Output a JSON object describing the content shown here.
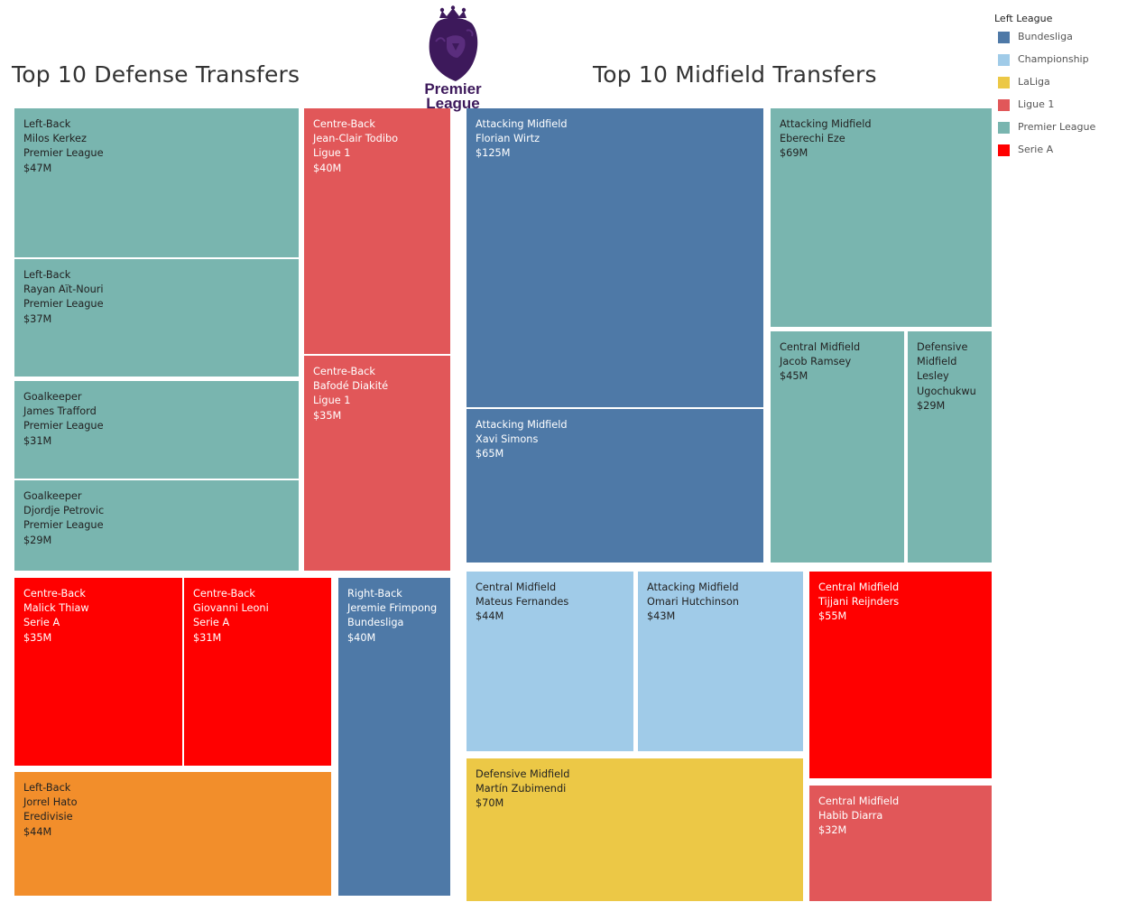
{
  "titles": {
    "defense": "Top 10 Defense Transfers",
    "midfield": "Top 10 Midfield Transfers"
  },
  "logo": {
    "line1": "Premier",
    "line2": "League"
  },
  "legend": {
    "title": "Left League",
    "items": [
      {
        "label": "Bundesliga",
        "color": "#4e79a7"
      },
      {
        "label": "Championship",
        "color": "#a0cbe8"
      },
      {
        "label": "LaLiga",
        "color": "#ecc846"
      },
      {
        "label": "Ligue 1",
        "color": "#e15759"
      },
      {
        "label": "Premier League",
        "color": "#79b5af"
      },
      {
        "label": "Serie A",
        "color": "#ff0000"
      }
    ]
  },
  "chart_data": [
    {
      "type": "treemap",
      "title": "Top 10 Defense Transfers",
      "unit": "$M",
      "items": [
        {
          "position": "Left-Back",
          "player": "Milos Kerkez",
          "league": "Premier League",
          "value_label": "$47M",
          "value": 47
        },
        {
          "position": "Left-Back",
          "player": "Rayan Aït-Nouri",
          "league": "Premier League",
          "value_label": "$37M",
          "value": 37
        },
        {
          "position": "Goalkeeper",
          "player": "James Trafford",
          "league": "Premier League",
          "value_label": "$31M",
          "value": 31
        },
        {
          "position": "Goalkeeper",
          "player": "Djordje Petrovic",
          "league": "Premier League",
          "value_label": "$29M",
          "value": 29
        },
        {
          "position": "Centre-Back",
          "player": "Jean-Clair Todibo",
          "league": "Ligue 1",
          "value_label": "$40M",
          "value": 40
        },
        {
          "position": "Centre-Back",
          "player": "Bafodé Diakité",
          "league": "Ligue 1",
          "value_label": "$35M",
          "value": 35
        },
        {
          "position": "Centre-Back",
          "player": "Malick Thiaw",
          "league": "Serie A",
          "value_label": "$35M",
          "value": 35
        },
        {
          "position": "Centre-Back",
          "player": "Giovanni Leoni",
          "league": "Serie A",
          "value_label": "$31M",
          "value": 31
        },
        {
          "position": "Right-Back",
          "player": "Jeremie Frimpong",
          "league": "Bundesliga",
          "value_label": "$40M",
          "value": 40
        },
        {
          "position": "Left-Back",
          "player": "Jorrel Hato",
          "league": "Eredivisie",
          "value_label": "$44M",
          "value": 44
        }
      ]
    },
    {
      "type": "treemap",
      "title": "Top 10 Midfield Transfers",
      "unit": "$M",
      "items": [
        {
          "position": "Attacking Midfield",
          "player": "Florian Wirtz",
          "league": "Bundesliga",
          "value_label": "$125M",
          "value": 125
        },
        {
          "position": "Attacking Midfield",
          "player": "Xavi Simons",
          "league": "Bundesliga",
          "value_label": "$65M",
          "value": 65
        },
        {
          "position": "Attacking Midfield",
          "player": "Eberechi Eze",
          "league": "Premier League",
          "value_label": "$69M",
          "value": 69
        },
        {
          "position": "Central Midfield",
          "player": "Jacob Ramsey",
          "league": "Premier League",
          "value_label": "$45M",
          "value": 45
        },
        {
          "position": "Defensive Midfield",
          "player": "Lesley Ugochukwu",
          "league": "Premier League",
          "value_label": "$29M",
          "value": 29
        },
        {
          "position": "Central Midfield",
          "player": "Mateus Fernandes",
          "league": "Championship",
          "value_label": "$44M",
          "value": 44
        },
        {
          "position": "Attacking Midfield",
          "player": "Omari Hutchinson",
          "league": "Championship",
          "value_label": "$43M",
          "value": 43
        },
        {
          "position": "Central Midfield",
          "player": "Tijjani Reijnders",
          "league": "Serie A",
          "value_label": "$55M",
          "value": 55
        },
        {
          "position": "Defensive Midfield",
          "player": "Martín Zubimendi",
          "league": "LaLiga",
          "value_label": "$70M",
          "value": 70
        },
        {
          "position": "Central Midfield",
          "player": "Habib Diarra",
          "league": "Ligue 1",
          "value_label": "$32M",
          "value": 32
        }
      ]
    }
  ],
  "league_colors": {
    "Bundesliga": "#4e79a7",
    "Championship": "#a0cbe8",
    "LaLiga": "#ecc846",
    "Ligue 1": "#e15759",
    "Premier League": "#79b5af",
    "Serie A": "#ff0000",
    "Eredivisie": "#f28e2b"
  }
}
